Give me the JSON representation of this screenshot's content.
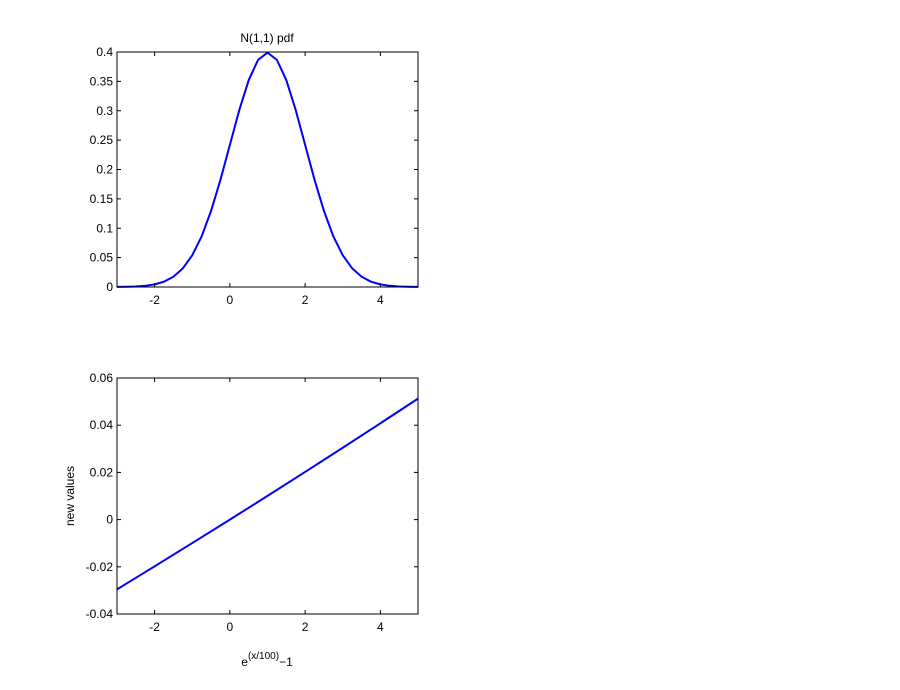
{
  "chart_data": [
    {
      "type": "line",
      "title": "N(1,1) pdf",
      "x": [
        -3,
        -2.75,
        -2.5,
        -2.25,
        -2,
        -1.75,
        -1.5,
        -1.25,
        -1,
        -0.75,
        -0.5,
        -0.25,
        0,
        0.25,
        0.5,
        0.75,
        1,
        1.25,
        1.5,
        1.75,
        2,
        2.25,
        2.5,
        2.75,
        3,
        3.25,
        3.5,
        3.75,
        4,
        4.25,
        4.5,
        4.75,
        5
      ],
      "series": [
        {
          "color": "#0000ff",
          "values": [
            0.000134,
            0.000353,
            0.000873,
            0.00203,
            0.00443,
            0.00909,
            0.01753,
            0.03174,
            0.05399,
            0.08628,
            0.12952,
            0.18265,
            0.24197,
            0.30114,
            0.35207,
            0.38667,
            0.39894,
            0.38667,
            0.35207,
            0.30114,
            0.24197,
            0.18265,
            0.12952,
            0.08628,
            0.05399,
            0.03174,
            0.01753,
            0.00909,
            0.00443,
            0.00203,
            0.000873,
            0.000353,
            0.000134
          ]
        }
      ],
      "xlim": [
        -3,
        5
      ],
      "xticks": [
        -2,
        0,
        2,
        4
      ],
      "ylim": [
        0,
        0.4
      ],
      "yticks": [
        0,
        0.05,
        0.1,
        0.15,
        0.2,
        0.25,
        0.3,
        0.35,
        0.4
      ]
    },
    {
      "type": "line",
      "ylabel": "new values",
      "xlabel": [
        "e",
        "(x/100)",
        "−1"
      ],
      "x": [
        -3,
        -2,
        -1,
        0,
        1,
        2,
        3,
        4,
        5
      ],
      "series": [
        {
          "color": "#0000ff",
          "values": [
            -0.02956,
            -0.0198,
            -0.00995,
            0,
            0.01005,
            0.0202,
            0.03045,
            0.04081,
            0.05127
          ]
        }
      ],
      "xlim": [
        -3,
        5
      ],
      "xticks": [
        -2,
        0,
        2,
        4
      ],
      "ylim": [
        -0.04,
        0.06
      ],
      "yticks": [
        -0.04,
        -0.02,
        0,
        0.02,
        0.04,
        0.06
      ]
    }
  ]
}
